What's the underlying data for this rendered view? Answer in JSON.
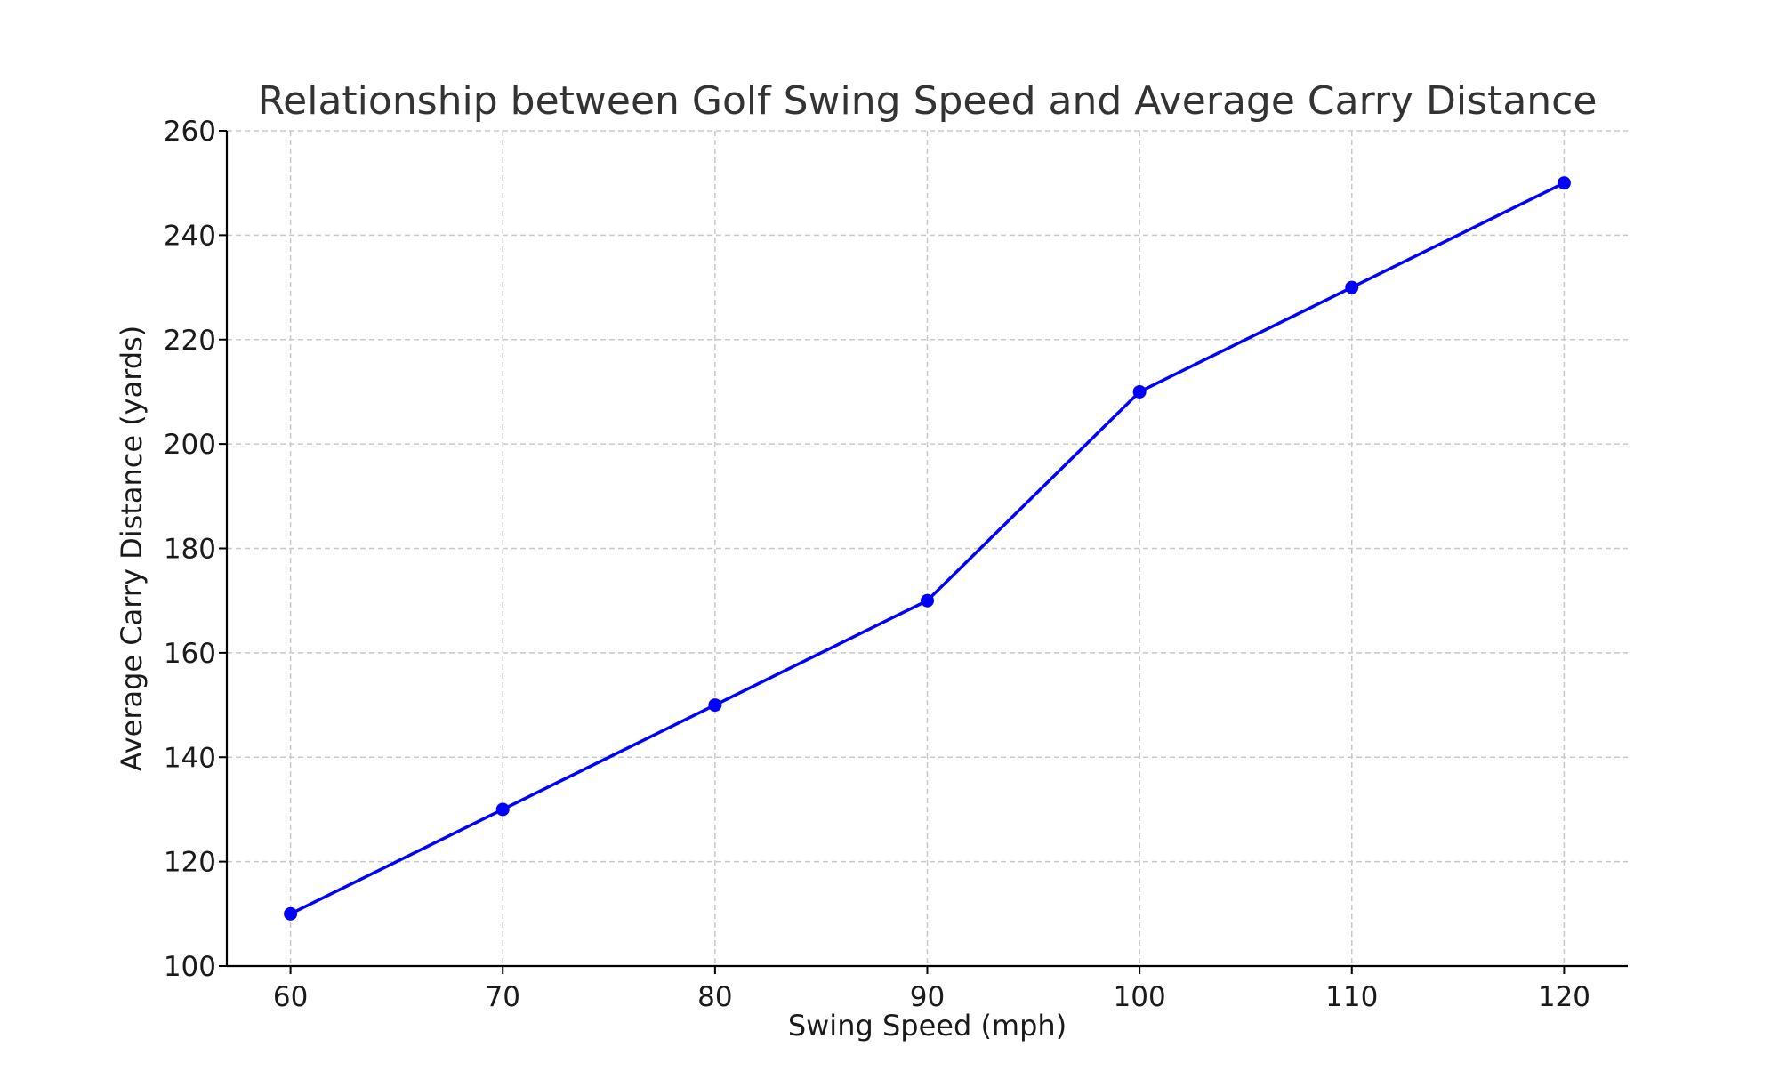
{
  "chart_data": {
    "type": "line",
    "title": "Relationship between Golf Swing Speed and Average Carry Distance",
    "xlabel": "Swing Speed (mph)",
    "ylabel": "Average Carry Distance (yards)",
    "x": [
      60,
      70,
      80,
      90,
      100,
      110,
      120
    ],
    "series": [
      {
        "values": [
          110,
          130,
          150,
          170,
          210,
          230,
          250
        ],
        "color": "#0000ff",
        "marker": "circle"
      }
    ],
    "xlim": [
      57,
      123
    ],
    "ylim": [
      100,
      260
    ],
    "xticks": [
      "60",
      "70",
      "80",
      "90",
      "100",
      "110",
      "120"
    ],
    "yticks": [
      "100",
      "120",
      "140",
      "160",
      "180",
      "200",
      "220",
      "240",
      "260"
    ],
    "grid": true,
    "grid_style": "dashed",
    "legend": "none"
  }
}
